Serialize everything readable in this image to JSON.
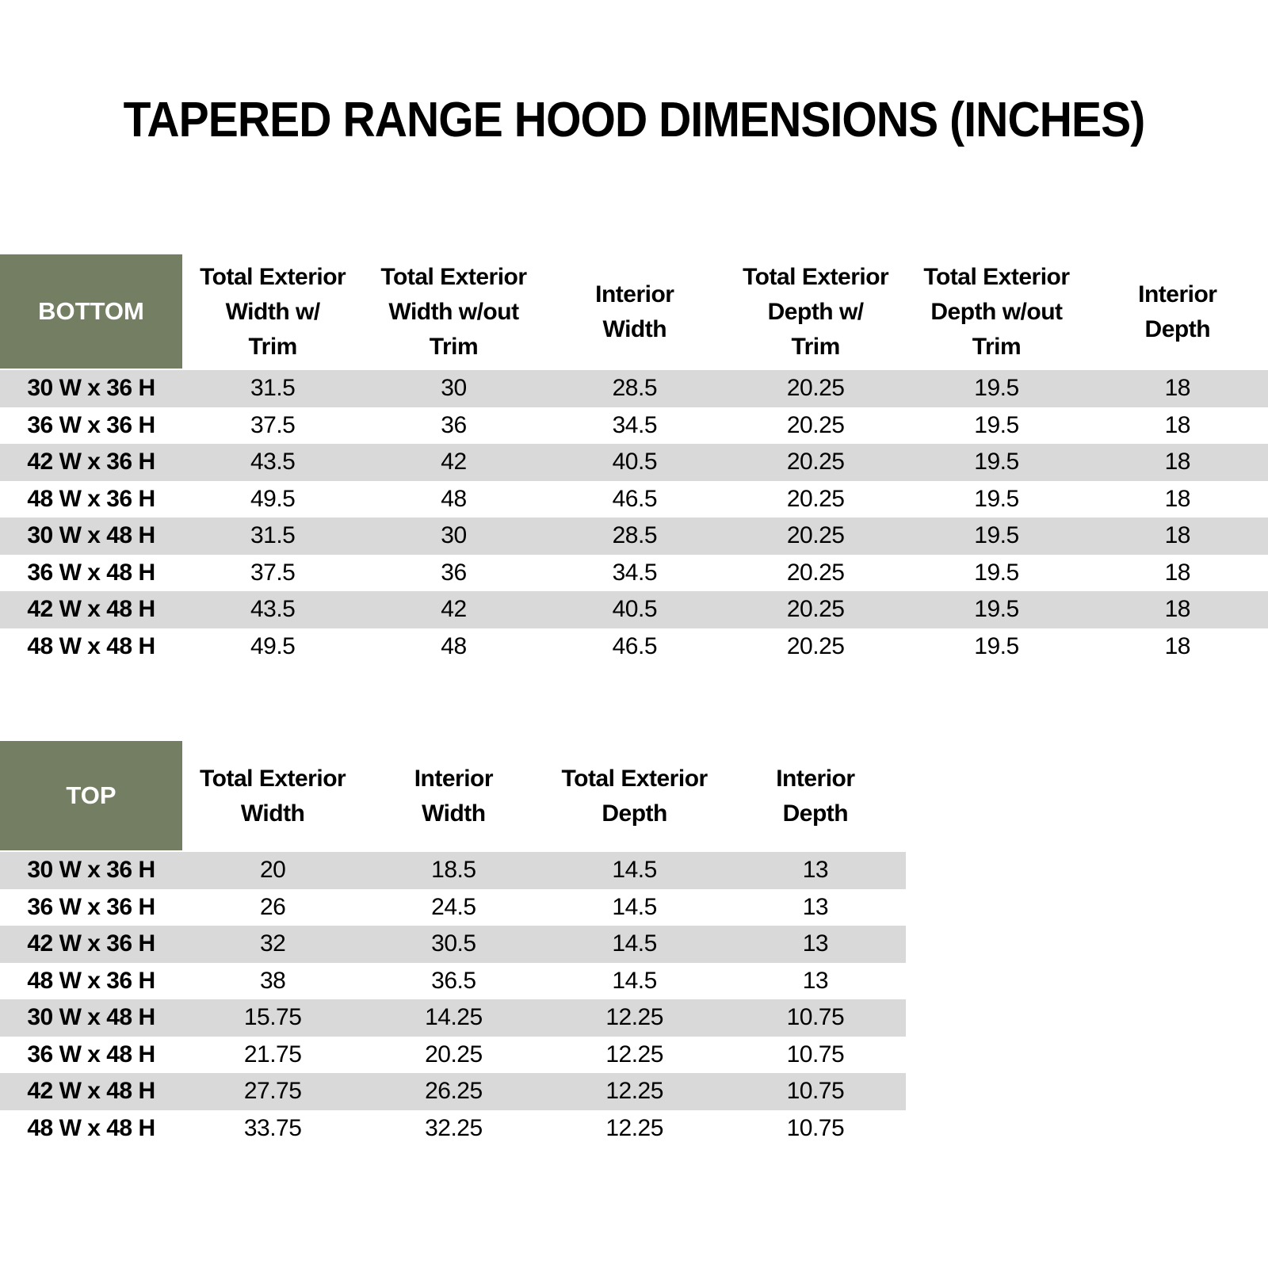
{
  "title": "TAPERED RANGE HOOD DIMENSIONS (INCHES)",
  "colors": {
    "header_bg": "#747E63",
    "header_text": "#FFFFFF",
    "stripe": "#D9D9D9",
    "body_text": "#000000",
    "page_bg": "#FFFFFF"
  },
  "bottom_table": {
    "corner_label": "BOTTOM",
    "columns": [
      "Total Exterior\nWidth w/\nTrim",
      "Total Exterior\nWidth w/out\nTrim",
      "Interior\nWidth",
      "Total Exterior\nDepth w/\nTrim",
      "Total Exterior\nDepth w/out\nTrim",
      "Interior\nDepth"
    ],
    "rows": [
      {
        "label": "30 W x 36 H",
        "values": [
          "31.5",
          "30",
          "28.5",
          "20.25",
          "19.5",
          "18"
        ]
      },
      {
        "label": "36 W x 36 H",
        "values": [
          "37.5",
          "36",
          "34.5",
          "20.25",
          "19.5",
          "18"
        ]
      },
      {
        "label": "42 W x 36 H",
        "values": [
          "43.5",
          "42",
          "40.5",
          "20.25",
          "19.5",
          "18"
        ]
      },
      {
        "label": "48 W x 36 H",
        "values": [
          "49.5",
          "48",
          "46.5",
          "20.25",
          "19.5",
          "18"
        ]
      },
      {
        "label": "30 W x 48 H",
        "values": [
          "31.5",
          "30",
          "28.5",
          "20.25",
          "19.5",
          "18"
        ]
      },
      {
        "label": "36 W x 48 H",
        "values": [
          "37.5",
          "36",
          "34.5",
          "20.25",
          "19.5",
          "18"
        ]
      },
      {
        "label": "42 W x 48 H",
        "values": [
          "43.5",
          "42",
          "40.5",
          "20.25",
          "19.5",
          "18"
        ]
      },
      {
        "label": "48 W x 48 H",
        "values": [
          "49.5",
          "48",
          "46.5",
          "20.25",
          "19.5",
          "18"
        ]
      }
    ]
  },
  "top_table": {
    "corner_label": "TOP",
    "columns": [
      "Total Exterior\nWidth",
      "Interior\nWidth",
      "Total Exterior\nDepth",
      "Interior\nDepth"
    ],
    "rows": [
      {
        "label": "30 W x 36 H",
        "values": [
          "20",
          "18.5",
          "14.5",
          "13"
        ]
      },
      {
        "label": "36 W x 36 H",
        "values": [
          "26",
          "24.5",
          "14.5",
          "13"
        ]
      },
      {
        "label": "42 W x 36 H",
        "values": [
          "32",
          "30.5",
          "14.5",
          "13"
        ]
      },
      {
        "label": "48 W x 36 H",
        "values": [
          "38",
          "36.5",
          "14.5",
          "13"
        ]
      },
      {
        "label": "30 W x 48 H",
        "values": [
          "15.75",
          "14.25",
          "12.25",
          "10.75"
        ]
      },
      {
        "label": "36 W x 48 H",
        "values": [
          "21.75",
          "20.25",
          "12.25",
          "10.75"
        ]
      },
      {
        "label": "42 W x 48 H",
        "values": [
          "27.75",
          "26.25",
          "12.25",
          "10.75"
        ]
      },
      {
        "label": "48 W x 48 H",
        "values": [
          "33.75",
          "32.25",
          "12.25",
          "10.75"
        ]
      }
    ]
  }
}
